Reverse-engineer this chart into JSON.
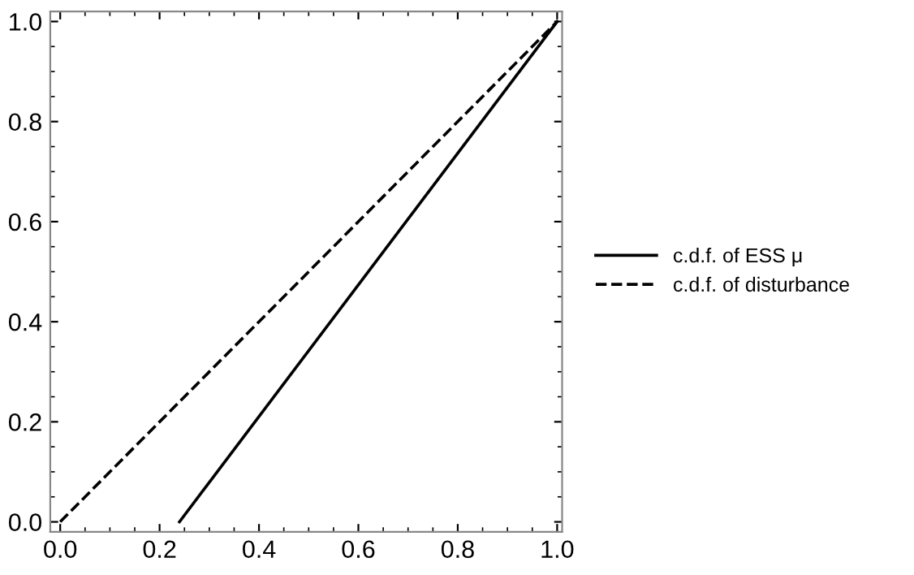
{
  "chart_data": {
    "type": "line",
    "series": [
      {
        "name": "c.d.f. of ESS μ",
        "color": "#000000",
        "x": [
          0.24,
          1.0
        ],
        "values": [
          0.0,
          1.0
        ],
        "line_style": "solid"
      },
      {
        "name": "c.d.f. of disturbance",
        "color": "#000000",
        "x": [
          0.0,
          1.0
        ],
        "values": [
          0.0,
          1.0
        ],
        "line_style": "dashed"
      }
    ],
    "xlim": [
      -0.02,
      1.01
    ],
    "ylim": [
      -0.02,
      1.02
    ],
    "xticks": [
      {
        "value": 0,
        "label": "0.0"
      },
      0.2,
      0.4,
      0.6,
      0.8,
      {
        "value": 1,
        "label": "1.0"
      }
    ],
    "yticks": [
      {
        "value": 0,
        "label": "0.0"
      },
      0.2,
      0.4,
      0.6,
      0.8,
      {
        "value": 1,
        "label": "1.0"
      }
    ],
    "grid": false,
    "legend": "right"
  }
}
